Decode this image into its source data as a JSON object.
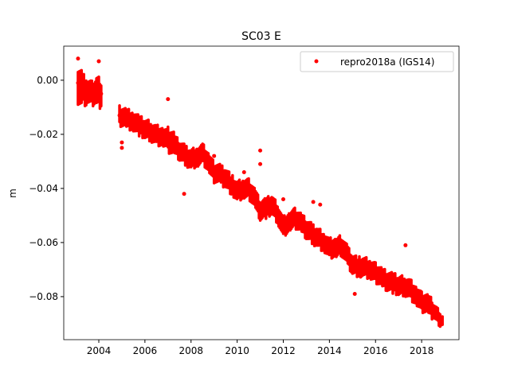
{
  "chart_data": {
    "type": "scatter",
    "title": "SC03 E",
    "xlabel": "",
    "ylabel": "m",
    "xlim": [
      2002.48,
      2019.62
    ],
    "ylim": [
      -0.0959,
      0.0126
    ],
    "xticks": [
      2004,
      2006,
      2008,
      2010,
      2012,
      2014,
      2016,
      2018
    ],
    "xtick_labels": [
      "2004",
      "2006",
      "2008",
      "2010",
      "2012",
      "2014",
      "2016",
      "2018"
    ],
    "yticks": [
      0.0,
      -0.02,
      -0.04,
      -0.06,
      -0.08
    ],
    "ytick_labels": [
      "0.00",
      "−0.02",
      "−0.04",
      "−0.06",
      "−0.08"
    ],
    "grid": false,
    "legend": {
      "placement": "top-right",
      "entries": [
        "repro2018a (IGS14)"
      ]
    },
    "series": [
      {
        "name": "repro2018a (IGS14)",
        "color": "#ff0000",
        "marker": "circle",
        "x": [
          2003.1,
          2003.3,
          2003.5,
          2003.7,
          2003.9,
          2004.1,
          2004.9,
          2005.2,
          2005.5,
          2005.8,
          2006.0,
          2006.3,
          2006.5,
          2006.8,
          2007.0,
          2007.3,
          2007.5,
          2007.8,
          2008.0,
          2008.3,
          2008.5,
          2008.8,
          2009.0,
          2009.3,
          2009.5,
          2009.8,
          2010.0,
          2010.3,
          2010.5,
          2010.8,
          2011.0,
          2011.3,
          2011.5,
          2011.8,
          2012.0,
          2012.3,
          2012.5,
          2012.8,
          2013.0,
          2013.3,
          2013.5,
          2013.8,
          2014.0,
          2014.3,
          2014.5,
          2014.8,
          2015.0,
          2015.3,
          2015.5,
          2015.8,
          2016.0,
          2016.3,
          2016.5,
          2016.8,
          2017.0,
          2017.3,
          2017.5,
          2017.8,
          2018.0,
          2018.3,
          2018.5,
          2018.7,
          2018.85
        ],
        "y": [
          -0.001,
          -0.003,
          -0.004,
          -0.005,
          -0.004,
          -0.005,
          -0.013,
          -0.014,
          -0.015,
          -0.017,
          -0.018,
          -0.019,
          -0.02,
          -0.021,
          -0.022,
          -0.024,
          -0.026,
          -0.028,
          -0.029,
          -0.028,
          -0.027,
          -0.031,
          -0.034,
          -0.035,
          -0.036,
          -0.039,
          -0.041,
          -0.04,
          -0.04,
          -0.044,
          -0.048,
          -0.047,
          -0.046,
          -0.05,
          -0.054,
          -0.052,
          -0.051,
          -0.053,
          -0.055,
          -0.057,
          -0.058,
          -0.06,
          -0.062,
          -0.062,
          -0.061,
          -0.065,
          -0.068,
          -0.069,
          -0.069,
          -0.07,
          -0.071,
          -0.073,
          -0.074,
          -0.075,
          -0.076,
          -0.076,
          -0.077,
          -0.08,
          -0.082,
          -0.083,
          -0.085,
          -0.087,
          -0.089
        ],
        "y_spread": [
          0.008,
          0.006,
          0.005,
          0.005,
          0.006,
          0.005,
          0.004,
          0.004,
          0.004,
          0.004,
          0.004,
          0.004,
          0.004,
          0.004,
          0.005,
          0.004,
          0.004,
          0.004,
          0.004,
          0.004,
          0.004,
          0.004,
          0.004,
          0.004,
          0.004,
          0.004,
          0.004,
          0.004,
          0.004,
          0.004,
          0.004,
          0.004,
          0.004,
          0.004,
          0.004,
          0.004,
          0.004,
          0.004,
          0.004,
          0.004,
          0.004,
          0.004,
          0.004,
          0.004,
          0.004,
          0.004,
          0.004,
          0.004,
          0.004,
          0.004,
          0.004,
          0.004,
          0.004,
          0.004,
          0.004,
          0.004,
          0.004,
          0.004,
          0.004,
          0.004,
          0.003,
          0.003,
          0.002
        ],
        "outliers": [
          [
            2003.1,
            0.008
          ],
          [
            2004.0,
            0.007
          ],
          [
            2005.0,
            -0.023
          ],
          [
            2005.0,
            -0.025
          ],
          [
            2007.0,
            -0.007
          ],
          [
            2007.7,
            -0.042
          ],
          [
            2008.4,
            -0.026
          ],
          [
            2009.0,
            -0.028
          ],
          [
            2010.3,
            -0.034
          ],
          [
            2011.0,
            -0.026
          ],
          [
            2011.0,
            -0.031
          ],
          [
            2012.0,
            -0.044
          ],
          [
            2013.3,
            -0.045
          ],
          [
            2013.6,
            -0.046
          ],
          [
            2015.1,
            -0.079
          ],
          [
            2017.3,
            -0.061
          ]
        ]
      }
    ]
  }
}
